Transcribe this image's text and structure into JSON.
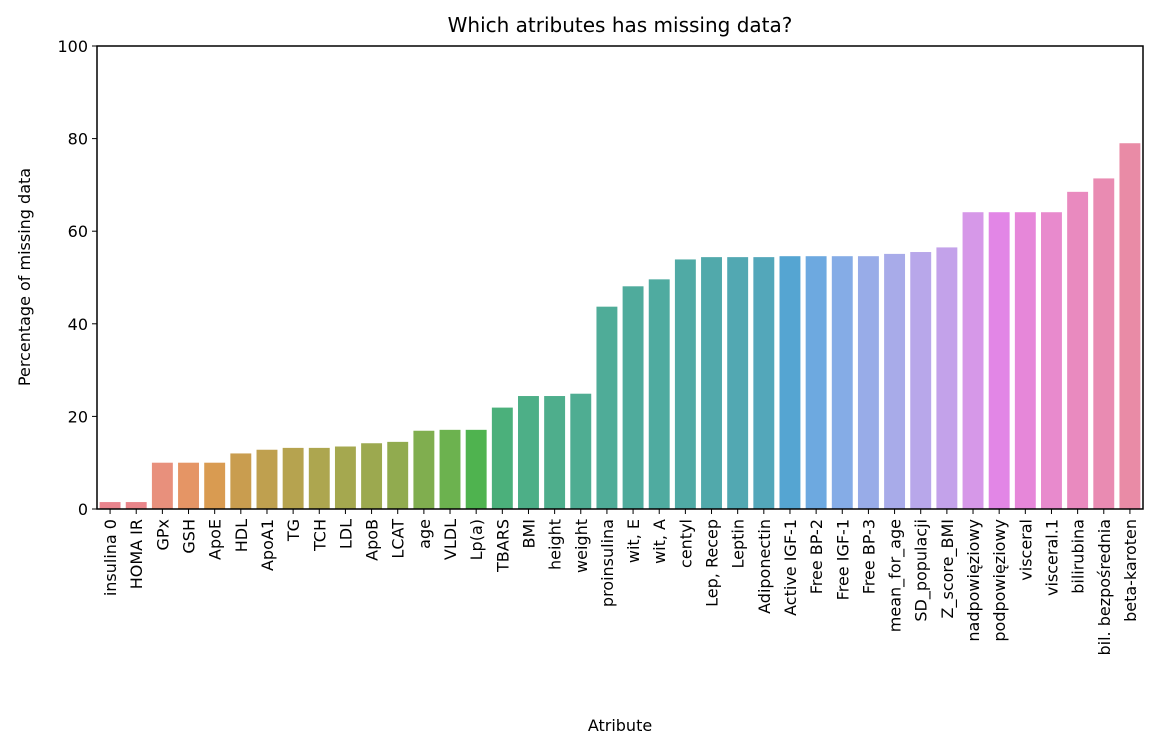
{
  "chart_data": {
    "type": "bar",
    "title": "Which atributes has missing data?",
    "xlabel": "Atribute",
    "ylabel": "Percentage of missing data",
    "ylim": [
      0,
      100
    ],
    "yticks": [
      0,
      20,
      40,
      60,
      80,
      100
    ],
    "grid": false,
    "legend": "none",
    "categories": [
      "insulina 0",
      "HOMA IR",
      "GPx",
      "GSH",
      "ApoE",
      "HDL",
      "ApoA1",
      "TG",
      "TCH",
      "LDL",
      "ApoB",
      "LCAT",
      "age",
      "VLDL",
      "Lp(a)",
      "TBARS",
      "BMI",
      "height",
      "weight",
      "proinsulina",
      "wit, E",
      "wit, A",
      "centyl",
      "Lep, Recep",
      "Leptin",
      "Adiponectin",
      "Active IGF-1",
      "Free BP-2",
      "Free IGF-1",
      "Free BP-3",
      "mean_for_age",
      "SD_populacji",
      "Z_score_BMI",
      "nadpowięziowy",
      "podpowięziowy",
      "visceral",
      "visceral.1",
      "bilirubina",
      "bil. bezpośrednia",
      "beta-karoten"
    ],
    "values": [
      1.5,
      1.5,
      10,
      10,
      10,
      12,
      12.8,
      13.2,
      13.2,
      13.5,
      14.2,
      14.5,
      16.9,
      17.1,
      17.1,
      21.9,
      24.4,
      24.4,
      24.9,
      43.7,
      48.1,
      49.6,
      53.9,
      54.4,
      54.4,
      54.4,
      54.6,
      54.6,
      54.6,
      54.6,
      55.1,
      55.5,
      56.5,
      64.1,
      64.1,
      64.1,
      64.1,
      68.5,
      71.4,
      79
    ],
    "colors": [
      "#e9848d",
      "#e9858a",
      "#e8907c",
      "#e59565",
      "#d99b51",
      "#c99d4f",
      "#bfa04f",
      "#b6a34f",
      "#ada64f",
      "#a5a84f",
      "#9ca94f",
      "#91ab4f",
      "#80ae4f",
      "#6cb24f",
      "#4fb34f",
      "#4bb07b",
      "#4daf87",
      "#4eae8c",
      "#4fad92",
      "#4fac98",
      "#4fab9c",
      "#4faba0",
      "#50aaa5",
      "#51a9ab",
      "#52a8b2",
      "#53a7ba",
      "#55a5d2",
      "#6da9e0",
      "#85ace6",
      "#98ace8",
      "#a8abe9",
      "#b8a7ea",
      "#c3a2ea",
      "#d698e8",
      "#e286e6",
      "#e687d9",
      "#e88acd",
      "#e98abf",
      "#e98bb2",
      "#e98ba6"
    ]
  }
}
